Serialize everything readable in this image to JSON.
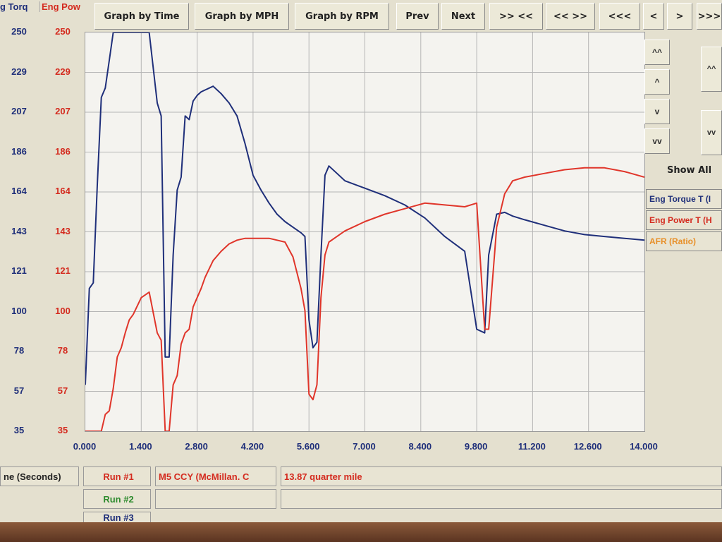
{
  "header": {
    "torque_label": "g Torq",
    "power_label": "Eng Pow"
  },
  "toolbar": {
    "graph_by_time": "Graph by Time",
    "graph_by_mph": "Graph by MPH",
    "graph_by_rpm": "Graph by RPM",
    "prev": "Prev",
    "next": "Next",
    "zoom_in": ">> <<",
    "zoom_out": "<< >>",
    "scroll_left_fast": "<<<",
    "scroll_left": "<",
    "scroll_right": ">",
    "scroll_right_fast": ">>>"
  },
  "side": {
    "scroll_up_fast": "^^",
    "scroll_up": "^",
    "scroll_down": "v",
    "scroll_down_fast": "vv",
    "right_up": "^^",
    "right_down": "vv",
    "show_all": "Show All"
  },
  "bottom": {
    "x_axis_label": "ne (Seconds)",
    "run1_label": "Run #1",
    "run1_desc": "M5 CCY (McMillan. C",
    "run1_note": "13.87 quarter mile",
    "run2_label": "Run #2",
    "run3_label": "Run #3"
  },
  "colors": {
    "torque": "#1f2f7a",
    "power": "#e0352a",
    "afr": "#e8902a",
    "run1": "#d42b1f",
    "run2": "#2e8b2e"
  },
  "chart_data": {
    "type": "line",
    "xlabel": "ne (Seconds)",
    "x_ticks": [
      "0.000",
      "1.400",
      "2.800",
      "4.200",
      "5.600",
      "7.000",
      "8.400",
      "9.800",
      "11.200",
      "12.600",
      "14.000"
    ],
    "y_ticks": [
      "250",
      "229",
      "207",
      "186",
      "164",
      "143",
      "121",
      "100",
      "78",
      "57",
      "35"
    ],
    "xlim": [
      0,
      14
    ],
    "ylim": [
      35,
      250
    ],
    "grid": true,
    "legend_position": "right",
    "series": [
      {
        "name": "Eng Torque T (I",
        "x": [
          0,
          0.1,
          0.2,
          0.3,
          0.4,
          0.5,
          0.6,
          0.7,
          0.8,
          0.9,
          1.0,
          1.1,
          1.2,
          1.4,
          1.6,
          1.8,
          1.9,
          2.0,
          2.1,
          2.2,
          2.3,
          2.4,
          2.5,
          2.6,
          2.7,
          2.8,
          2.9,
          3.0,
          3.2,
          3.4,
          3.6,
          3.8,
          4.0,
          4.2,
          4.4,
          4.6,
          4.8,
          5.0,
          5.2,
          5.4,
          5.5,
          5.6,
          5.7,
          5.8,
          5.9,
          6.0,
          6.1,
          6.3,
          6.5,
          7.0,
          7.5,
          8.0,
          8.5,
          9.0,
          9.5,
          9.8,
          10.0,
          10.1,
          10.3,
          10.5,
          10.7,
          11.0,
          11.5,
          12.0,
          12.5,
          13.0,
          13.5,
          14.0
        ],
        "y": [
          60,
          112,
          115,
          168,
          215,
          220,
          235,
          250,
          250,
          250,
          250,
          250,
          250,
          250,
          250,
          212,
          205,
          75,
          75,
          130,
          165,
          172,
          205,
          203,
          213,
          216,
          218,
          219,
          221,
          217,
          212,
          205,
          190,
          173,
          165,
          158,
          152,
          148,
          145,
          142,
          140,
          95,
          80,
          83,
          130,
          173,
          178,
          174,
          170,
          166,
          162,
          157,
          150,
          140,
          132,
          90,
          88,
          130,
          152,
          153,
          151,
          149,
          146,
          143,
          141,
          140,
          139,
          138
        ],
        "color": "#1f2f7a"
      },
      {
        "name": "Eng Power T (H",
        "x": [
          0,
          0.1,
          0.2,
          0.3,
          0.4,
          0.5,
          0.6,
          0.7,
          0.8,
          0.9,
          1.0,
          1.1,
          1.2,
          1.4,
          1.6,
          1.8,
          1.9,
          2.0,
          2.1,
          2.2,
          2.3,
          2.4,
          2.5,
          2.6,
          2.7,
          2.8,
          2.9,
          3.0,
          3.2,
          3.4,
          3.6,
          3.8,
          4.0,
          4.2,
          4.4,
          4.6,
          4.8,
          5.0,
          5.2,
          5.4,
          5.5,
          5.6,
          5.7,
          5.8,
          5.9,
          6.0,
          6.1,
          6.3,
          6.5,
          7.0,
          7.5,
          8.0,
          8.5,
          9.0,
          9.5,
          9.8,
          10.0,
          10.1,
          10.3,
          10.5,
          10.7,
          11.0,
          11.5,
          12.0,
          12.5,
          13.0,
          13.5,
          14.0
        ],
        "y": [
          35,
          35,
          35,
          35,
          35,
          44,
          46,
          58,
          75,
          80,
          88,
          95,
          98,
          107,
          110,
          88,
          84,
          35,
          35,
          60,
          65,
          82,
          88,
          90,
          102,
          107,
          112,
          118,
          127,
          132,
          136,
          138,
          139,
          139,
          139,
          139,
          138,
          137,
          129,
          112,
          100,
          55,
          52,
          60,
          107,
          130,
          137,
          140,
          143,
          148,
          152,
          155,
          158,
          157,
          156,
          158,
          90,
          90,
          145,
          163,
          170,
          172,
          174,
          176,
          177,
          177,
          175,
          172
        ],
        "color": "#e0352a"
      },
      {
        "name": "AFR (Ratio)",
        "x": [],
        "y": [],
        "color": "#e8902a"
      }
    ]
  }
}
